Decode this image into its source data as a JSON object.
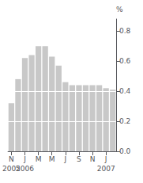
{
  "chart_data": {
    "type": "bar",
    "categories": [
      "N",
      null,
      "J",
      null,
      "M",
      null,
      "M",
      null,
      "J",
      null,
      "S",
      null,
      "N",
      null,
      "J",
      null
    ],
    "values": [
      0.32,
      0.48,
      0.62,
      0.64,
      0.7,
      0.7,
      0.63,
      0.57,
      0.46,
      0.44,
      0.44,
      0.44,
      0.44,
      0.44,
      0.42,
      0.41
    ],
    "color": "#c8c8c8",
    "y_label": "%",
    "ylim": [
      0,
      0.88
    ],
    "yticks": [
      {
        "value": 0,
        "label": "0.0"
      },
      0.2,
      0.4,
      0.6,
      0.8
    ],
    "reference_lines": [
      {
        "value": 0.4,
        "color": "#ffffff"
      },
      {
        "value": 0.2,
        "color": "#ffffff"
      }
    ],
    "annotations": [
      {
        "text": "2005",
        "x": 0
      },
      {
        "text": "2006",
        "x": 2
      },
      {
        "text": "2007",
        "x": 14
      }
    ],
    "grid": false
  }
}
